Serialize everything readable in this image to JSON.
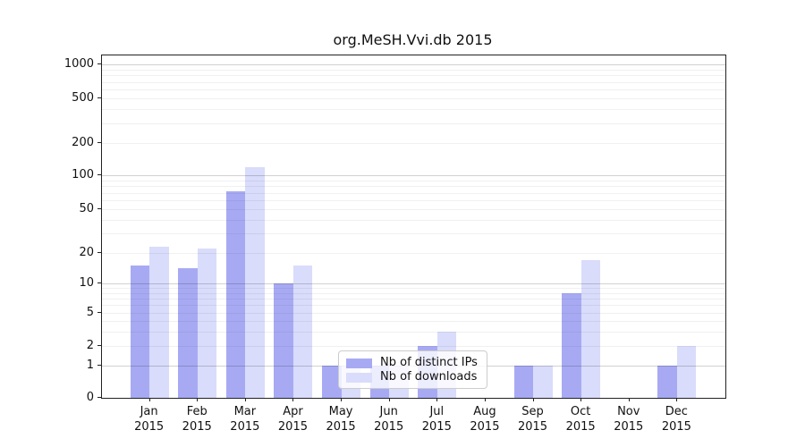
{
  "title": "org.MeSH.Vvi.db 2015",
  "colors": {
    "distinct_ips": "#a7aaf2",
    "downloads": "#d9dcfa",
    "axis": "#222222",
    "grid_major": "#d4d4d4",
    "grid_minor": "#efefef"
  },
  "legend": {
    "items": [
      {
        "label": "Nb of distinct IPs",
        "series": "distinct_ips"
      },
      {
        "label": "Nb of downloads",
        "series": "downloads"
      }
    ]
  },
  "chart_data": {
    "type": "bar",
    "title": "org.MeSH.Vvi.db 2015",
    "categories": [
      "Jan 2015",
      "Feb 2015",
      "Mar 2015",
      "Apr 2015",
      "May 2015",
      "Jun 2015",
      "Jul 2015",
      "Aug 2015",
      "Sep 2015",
      "Oct 2015",
      "Nov 2015",
      "Dec 2015"
    ],
    "series": [
      {
        "name": "Nb of distinct IPs",
        "color": "#a7aaf2",
        "values": [
          15,
          14,
          72,
          10,
          1,
          1,
          2,
          0,
          1,
          8,
          0,
          1
        ]
      },
      {
        "name": "Nb of downloads",
        "color": "#d9dcfa",
        "values": [
          23,
          22,
          119,
          15,
          1,
          1,
          3,
          0,
          1,
          17,
          0,
          2
        ]
      }
    ],
    "xlabel": "",
    "ylabel": "",
    "yscale": "symlog",
    "ylim": [
      0,
      1000
    ],
    "yticks": [
      0,
      1,
      2,
      5,
      10,
      20,
      50,
      100,
      200,
      500,
      1000
    ],
    "grid": true,
    "legend_position": "lower center (inside plot)"
  }
}
